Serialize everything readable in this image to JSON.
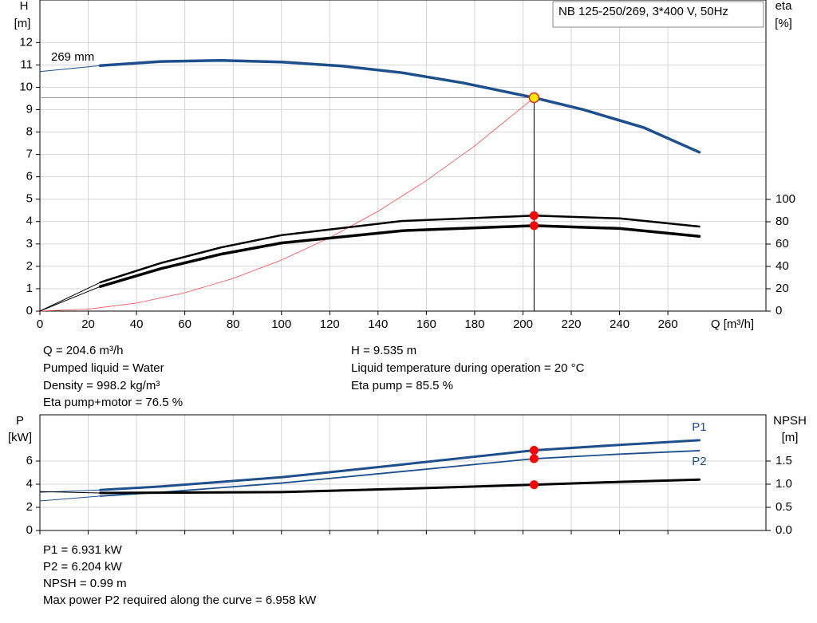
{
  "chart_data": [
    {
      "type": "line",
      "title": "NB 125-250/269, 3*400 V, 50Hz",
      "annotation": "269 mm",
      "xlabel": "Q [m³/h]",
      "ylabel": "H",
      "yunit": "[m]",
      "y2label": "eta",
      "y2unit": "[%]",
      "xlim": [
        0,
        300.6
      ],
      "xticks": [
        0,
        20,
        40,
        60,
        80,
        100,
        120,
        140,
        160,
        180,
        200,
        220,
        240,
        260
      ],
      "show_xtick_labels": true,
      "ylim": [
        0,
        13.9
      ],
      "yticks": [
        0,
        1,
        2,
        3,
        4,
        5,
        6,
        7,
        8,
        9,
        10,
        11,
        12
      ],
      "y2lim": [
        0,
        278.6
      ],
      "y2ticks": [
        0,
        20,
        40,
        60,
        80,
        100
      ],
      "grid": true,
      "operating_point": {
        "x": 204.6,
        "y": 9.535
      },
      "series": [
        {
          "color": "#1c4f8c",
          "width": 1,
          "axis": "y",
          "x": [
            0,
            25
          ],
          "values": [
            10.7,
            10.97
          ]
        },
        {
          "color": "#1c4f8c",
          "width": 3.5,
          "axis": "y",
          "x": [
            25,
            50,
            75,
            100,
            125,
            150,
            175,
            204.6,
            225,
            250,
            273
          ],
          "values": [
            10.97,
            11.15,
            11.2,
            11.13,
            10.95,
            10.65,
            10.2,
            9.535,
            9.0,
            8.2,
            7.1
          ]
        },
        {
          "color": "#ff4a4a",
          "width": 0.8,
          "axis": "y",
          "x": [
            0,
            20,
            40,
            60,
            80,
            100,
            120,
            140,
            160,
            180,
            204.6
          ],
          "values": [
            0,
            0.09,
            0.36,
            0.82,
            1.46,
            2.28,
            3.28,
            4.46,
            5.83,
            7.38,
            9.535
          ]
        },
        {
          "color": "#000000",
          "width": 1,
          "axis": "y2",
          "x": [
            0,
            25
          ],
          "values": [
            0,
            25.7
          ]
        },
        {
          "color": "#000000",
          "width": 2.5,
          "axis": "y2",
          "marker": "red",
          "x": [
            25,
            50,
            75,
            100,
            150,
            204.6,
            240,
            273
          ],
          "values": [
            25.7,
            43,
            57,
            68,
            80.7,
            85.5,
            83,
            75.7
          ]
        },
        {
          "color": "#000000",
          "width": 1,
          "axis": "y2",
          "x": [
            0,
            25
          ],
          "values": [
            0,
            22
          ]
        },
        {
          "color": "#000000",
          "width": 3.5,
          "axis": "y2",
          "marker": "red",
          "x": [
            25,
            50,
            75,
            100,
            150,
            204.6,
            240,
            273
          ],
          "values": [
            22,
            38,
            51,
            61,
            72,
            76.5,
            74,
            67
          ]
        }
      ],
      "notes": [
        "Q = 204.6 m³/h",
        "Pumped liquid = Water",
        "Density = 998.2 kg/m³",
        "Eta pump+motor = 76.5 %",
        "H = 9.535 m",
        "Liquid temperature during operation = 20 °C",
        "Eta pump = 85.5 %"
      ]
    },
    {
      "type": "line",
      "ylabel": "P",
      "yunit": "[kW]",
      "y2label": "NPSH",
      "y2unit": "[m]",
      "xlim": [
        0,
        300.6
      ],
      "xticks": [
        0,
        20,
        40,
        60,
        80,
        100,
        120,
        140,
        160,
        180,
        200,
        220,
        240,
        260
      ],
      "show_xtick_labels": false,
      "ylim": [
        0,
        10
      ],
      "yticks": [
        0,
        2,
        4,
        6
      ],
      "y2lim": [
        0,
        2.5
      ],
      "y2ticks": [
        {
          "value": 0,
          "label": "0.0"
        },
        0.5,
        {
          "value": 1,
          "label": "1.0"
        },
        1.5
      ],
      "grid": true,
      "series": [
        {
          "color": "#1c4f8c",
          "width": 1,
          "axis": "y",
          "x": [
            0,
            25
          ],
          "values": [
            3.3,
            3.5
          ]
        },
        {
          "name": "P1",
          "label_pos": "above",
          "color": "#1c4f8c",
          "width": 3,
          "axis": "y",
          "marker": "red",
          "x": [
            25,
            50,
            100,
            150,
            204.6,
            240,
            273
          ],
          "values": [
            3.5,
            3.8,
            4.6,
            5.7,
            6.931,
            7.4,
            7.8
          ]
        },
        {
          "color": "#1c4f8c",
          "width": 1,
          "axis": "y",
          "x": [
            0,
            25
          ],
          "values": [
            2.55,
            2.97
          ]
        },
        {
          "name": "P2",
          "label_pos": "below",
          "color": "#1c4f8c",
          "width": 1.8,
          "axis": "y",
          "marker": "red",
          "x": [
            25,
            50,
            100,
            150,
            204.6,
            240,
            273
          ],
          "values": [
            2.97,
            3.3,
            4.1,
            5.1,
            6.204,
            6.6,
            6.9
          ]
        },
        {
          "color": "#000000",
          "width": 1,
          "axis": "y2",
          "x": [
            0,
            25
          ],
          "values": [
            0.84,
            0.81
          ]
        },
        {
          "color": "#000000",
          "width": 3,
          "axis": "y2",
          "marker": "red",
          "x": [
            25,
            100,
            150,
            204.6,
            240,
            273
          ],
          "values": [
            0.81,
            0.83,
            0.9,
            0.99,
            1.05,
            1.1
          ]
        }
      ],
      "notes": [
        "P1 = 6.931 kW",
        "P2 = 6.204 kW",
        "NPSH = 0.99 m",
        "Max power P2 required along the curve = 6.958 kW"
      ]
    }
  ]
}
